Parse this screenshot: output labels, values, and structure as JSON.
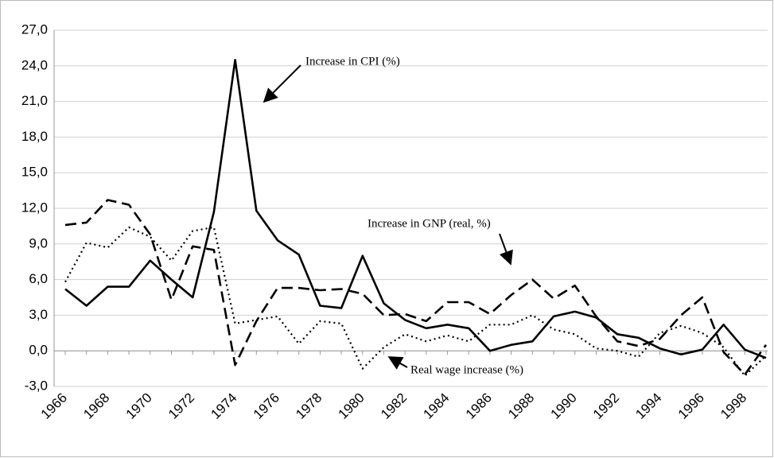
{
  "chart_data": {
    "type": "line",
    "categories": [
      "1966",
      null,
      "1968",
      null,
      "1970",
      null,
      "1972",
      null,
      "1974",
      null,
      "1976",
      null,
      "1978",
      null,
      "1980",
      null,
      "1982",
      null,
      "1984",
      null,
      "1986",
      null,
      "1988",
      null,
      "1990",
      null,
      "1992",
      null,
      "1994",
      null,
      "1996",
      null,
      "1998",
      null
    ],
    "series": [
      {
        "name": "Increase in CPI (%)",
        "color": "#000000",
        "style": "solid",
        "values": [
          5.2,
          3.8,
          5.4,
          5.4,
          7.6,
          6.0,
          4.5,
          11.7,
          24.5,
          11.8,
          9.3,
          8.1,
          3.8,
          3.6,
          8.0,
          4.0,
          2.6,
          1.9,
          2.2,
          1.9,
          0.0,
          0.5,
          0.8,
          2.9,
          3.3,
          2.8,
          1.4,
          1.1,
          0.2,
          -0.3,
          0.1,
          2.2,
          0.1,
          -0.6
        ]
      },
      {
        "name": "Increase in GNP (real, %)",
        "color": "#000000",
        "style": "dashed",
        "values": [
          10.6,
          10.8,
          12.7,
          12.3,
          9.8,
          4.3,
          8.8,
          8.5,
          -1.2,
          2.5,
          5.3,
          5.3,
          5.1,
          5.2,
          4.8,
          3.0,
          3.1,
          2.5,
          4.1,
          4.1,
          3.1,
          4.7,
          6.0,
          4.4,
          5.5,
          2.9,
          0.8,
          0.4,
          1.0,
          3.0,
          4.5,
          -0.1,
          -2.0,
          0.5
        ]
      },
      {
        "name": "Real wage increase (%)",
        "color": "#000000",
        "style": "dotted",
        "values": [
          5.8,
          9.1,
          8.7,
          10.4,
          9.6,
          7.6,
          10.1,
          10.4,
          2.3,
          2.6,
          2.9,
          0.6,
          2.5,
          2.3,
          -1.5,
          0.3,
          1.4,
          0.8,
          1.3,
          0.8,
          2.2,
          2.2,
          3.0,
          1.8,
          1.4,
          0.2,
          0.0,
          -0.5,
          1.5,
          2.1,
          1.5,
          0.3,
          -2.1,
          -0.4
        ]
      }
    ],
    "ylim": [
      -3,
      27
    ],
    "yticks": [
      {
        "value": -3,
        "label": "-3,0"
      },
      {
        "value": 0,
        "label": "0,0"
      },
      {
        "value": 3,
        "label": "3,0"
      },
      {
        "value": 6,
        "label": "6,0"
      },
      {
        "value": 9,
        "label": "9,0"
      },
      {
        "value": 12,
        "label": "12,0"
      },
      {
        "value": 15,
        "label": "15,0"
      },
      {
        "value": 18,
        "label": "18,0"
      },
      {
        "value": 21,
        "label": "21,0"
      },
      {
        "value": 24,
        "label": "24,0"
      },
      {
        "value": 27,
        "label": "27,0"
      }
    ],
    "grid": true
  }
}
